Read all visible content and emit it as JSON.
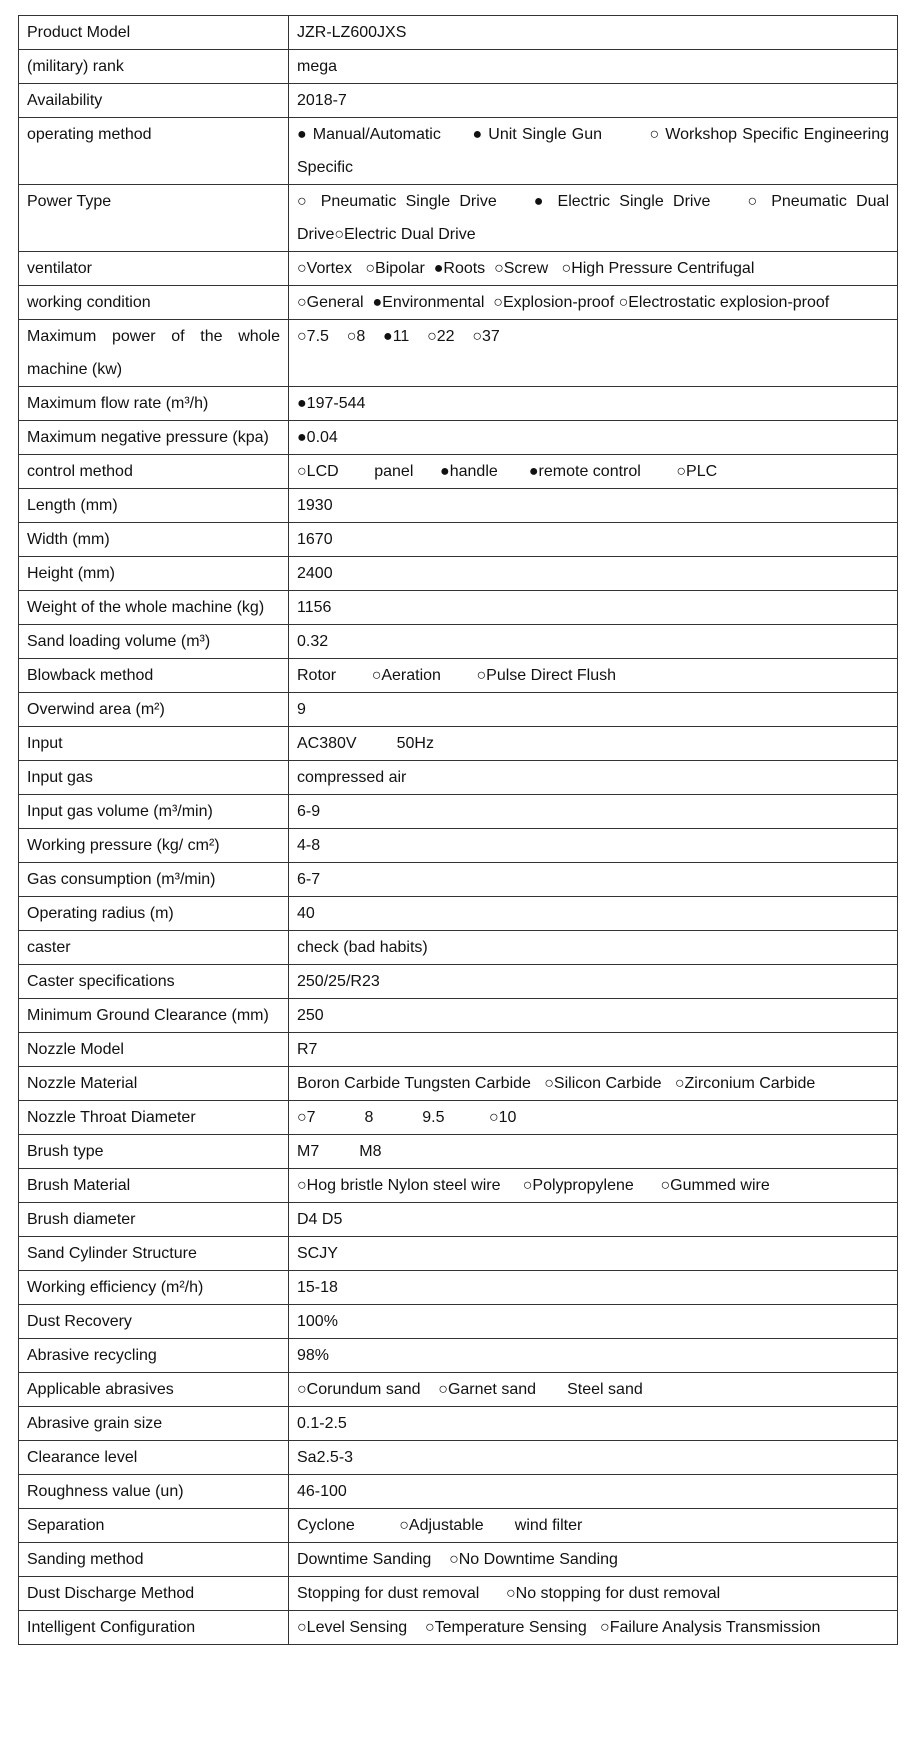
{
  "table": {
    "rows": [
      [
        "Product Model",
        "JZR-LZ600JXS"
      ],
      [
        "(military) rank",
        "mega"
      ],
      [
        "Availability",
        "2018-7"
      ],
      [
        "operating method",
        "● Manual/Automatic      ● Unit Single Gun         ○ Workshop Specific Engineering Specific"
      ],
      [
        "Power Type",
        "○ Pneumatic Single Drive    ● Electric Single Drive    ○ Pneumatic Dual Drive○Electric Dual Drive"
      ],
      [
        "ventilator",
        "○Vortex   ○Bipolar  ●Roots  ○Screw   ○High Pressure Centrifugal"
      ],
      [
        "working condition",
        "○General  ●Environmental  ○Explosion-proof ○Electrostatic explosion-proof"
      ],
      [
        "Maximum power of the whole machine (kw)",
        "○7.5    ○8    ●11    ○22    ○37"
      ],
      [
        "Maximum flow rate (m³/h)",
        "●197-544"
      ],
      [
        "Maximum negative pressure (kpa)",
        "●0.04"
      ],
      [
        "control method",
        "○LCD        panel      ●handle       ●remote control        ○PLC"
      ],
      [
        "Length (mm)",
        "1930"
      ],
      [
        "Width (mm)",
        "1670"
      ],
      [
        "Height (mm)",
        "2400"
      ],
      [
        "Weight of the whole machine (kg)",
        "1156"
      ],
      [
        "Sand loading volume (m³)",
        "0.32"
      ],
      [
        "Blowback method",
        "Rotor        ○Aeration        ○Pulse Direct Flush"
      ],
      [
        "Overwind area (m²)",
        "9"
      ],
      [
        "Input",
        "AC380V         50Hz"
      ],
      [
        "Input gas",
        "compressed air"
      ],
      [
        "Input gas volume (m³/min)",
        "6-9"
      ],
      [
        "Working pressure (kg/ cm²)",
        "4-8"
      ],
      [
        "Gas consumption (m³/min)",
        "6-7"
      ],
      [
        "Operating radius (m)",
        "40"
      ],
      [
        "caster",
        "check (bad habits)"
      ],
      [
        "Caster specifications",
        "250/25/R23"
      ],
      [
        "Minimum Ground Clearance (mm)",
        "250"
      ],
      [
        "Nozzle Model",
        "R7"
      ],
      [
        "Nozzle Material",
        "Boron Carbide Tungsten Carbide   ○Silicon Carbide   ○Zirconium Carbide"
      ],
      [
        "Nozzle Throat Diameter",
        "○7           8           9.5          ○10"
      ],
      [
        "Brush type",
        "M7         M8"
      ],
      [
        "Brush Material",
        "○Hog bristle Nylon steel wire     ○Polypropylene      ○Gummed wire"
      ],
      [
        "Brush diameter",
        "D4 D5"
      ],
      [
        "Sand Cylinder Structure",
        "SCJY"
      ],
      [
        "Working efficiency (m²/h)",
        "15-18"
      ],
      [
        "Dust Recovery",
        "100%"
      ],
      [
        "Abrasive recycling",
        "98%"
      ],
      [
        "Applicable abrasives",
        "○Corundum sand    ○Garnet sand       Steel sand"
      ],
      [
        "Abrasive grain size",
        "0.1-2.5"
      ],
      [
        "Clearance level",
        "Sa2.5-3"
      ],
      [
        "Roughness value (un)",
        "46-100"
      ],
      [
        "Separation",
        "Cyclone          ○Adjustable       wind filter"
      ],
      [
        "Sanding method",
        "Downtime Sanding    ○No Downtime Sanding"
      ],
      [
        "Dust Discharge Method",
        "Stopping for dust removal      ○No stopping for dust removal"
      ],
      [
        "Intelligent Configuration",
        "○Level Sensing    ○Temperature Sensing   ○Failure Analysis Transmission"
      ]
    ]
  }
}
